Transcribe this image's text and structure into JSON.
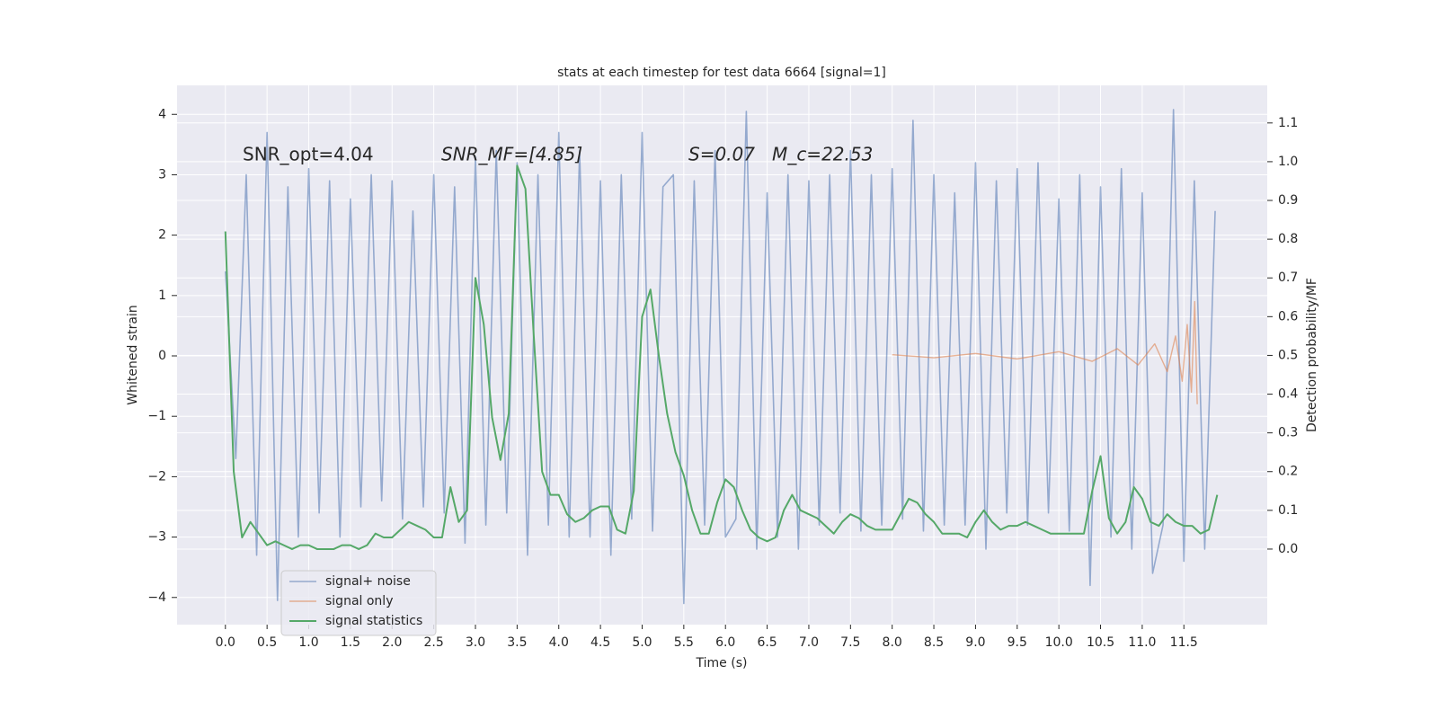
{
  "chart_data": {
    "type": "line",
    "title": "stats at each timestep for test data 6664 [signal=1]",
    "x_label": "Time (s)",
    "y_label": "Whitened strain",
    "y2_label": "Detection probability/MF",
    "annotations": [
      "SNR_opt=4.04",
      "SNR_MF=[4.85]",
      "S=0.07   M_c=22.53"
    ],
    "xlim": [
      -0.58,
      12.5
    ],
    "ylim": [
      -4.45,
      4.48
    ],
    "y2lim": [
      -0.195,
      1.197
    ],
    "xticks": [
      {
        "value": 0,
        "label": "0.0"
      },
      0.5,
      {
        "value": 1,
        "label": "1.0"
      },
      1.5,
      {
        "value": 2,
        "label": "2.0"
      },
      2.5,
      {
        "value": 3,
        "label": "3.0"
      },
      3.5,
      {
        "value": 4,
        "label": "4.0"
      },
      4.5,
      {
        "value": 5,
        "label": "5.0"
      },
      5.5,
      {
        "value": 6,
        "label": "6.0"
      },
      6.5,
      {
        "value": 7,
        "label": "7.0"
      },
      7.5,
      {
        "value": 8,
        "label": "8.0"
      },
      8.5,
      {
        "value": 9,
        "label": "9.0"
      },
      9.5,
      {
        "value": 10,
        "label": "10.0"
      },
      10.5,
      {
        "value": 11,
        "label": "11.0"
      },
      11.5
    ],
    "yticks": [
      {
        "value": -4,
        "label": "−4"
      },
      {
        "value": -3,
        "label": "−3"
      },
      {
        "value": -2,
        "label": "−2"
      },
      {
        "value": -1,
        "label": "−1"
      },
      0,
      1,
      2,
      3,
      4
    ],
    "y2ticks": [
      {
        "value": 0,
        "label": "0.0"
      },
      0.1,
      0.2,
      0.3,
      0.4,
      0.5,
      0.6,
      0.7,
      0.8,
      0.9,
      {
        "value": 1,
        "label": "1.0"
      },
      1.1
    ],
    "grid": true,
    "legend": "lower left",
    "series": [
      {
        "name": "signal+ noise",
        "color": "#4c72b0",
        "x": [
          0,
          0.125,
          0.25,
          0.375,
          0.5,
          0.625,
          0.75,
          0.875,
          1,
          1.125,
          1.25,
          1.375,
          1.5,
          1.625,
          1.75,
          1.875,
          2,
          2.125,
          2.25,
          2.375,
          2.5,
          2.625,
          2.75,
          2.875,
          3,
          3.125,
          3.25,
          3.375,
          3.5,
          3.625,
          3.75,
          3.875,
          4,
          4.125,
          4.25,
          4.375,
          4.5,
          4.625,
          4.75,
          4.875,
          5,
          5.125,
          5.25,
          5.375,
          5.5,
          5.625,
          5.75,
          5.875,
          6,
          6.125,
          6.25,
          6.375,
          6.5,
          6.625,
          6.75,
          6.875,
          7,
          7.125,
          7.25,
          7.375,
          7.5,
          7.625,
          7.75,
          7.875,
          8,
          8.125,
          8.25,
          8.375,
          8.5,
          8.625,
          8.75,
          8.875,
          9,
          9.125,
          9.25,
          9.375,
          9.5,
          9.625,
          9.75,
          9.875,
          10,
          10.125,
          10.25,
          10.375,
          10.5,
          10.625,
          10.75,
          10.875,
          11,
          11.125,
          11.25,
          11.375,
          11.5,
          11.625,
          11.75,
          11.875
        ],
        "values": [
          1.4,
          -1.7,
          3.0,
          -3.3,
          3.7,
          -4.05,
          2.8,
          -3.0,
          3.1,
          -2.6,
          2.9,
          -3.0,
          2.6,
          -2.5,
          3.0,
          -2.4,
          2.9,
          -2.7,
          2.4,
          -2.5,
          3.0,
          -2.6,
          2.8,
          -3.1,
          3.3,
          -2.8,
          3.4,
          -2.6,
          3.2,
          -3.3,
          3.0,
          -2.8,
          3.7,
          -3.0,
          3.4,
          -3.0,
          2.9,
          -3.3,
          3.0,
          -2.7,
          3.7,
          -2.9,
          2.8,
          3.0,
          -4.1,
          2.9,
          -2.8,
          3.4,
          -3.0,
          -2.7,
          4.05,
          -3.2,
          2.7,
          -3.0,
          3.0,
          -3.2,
          2.9,
          -2.8,
          3.0,
          -2.6,
          3.4,
          -2.9,
          3.0,
          -2.8,
          3.1,
          -2.7,
          3.9,
          -2.9,
          3.0,
          -2.8,
          2.7,
          -2.8,
          3.2,
          -3.2,
          2.9,
          -2.6,
          3.1,
          -2.8,
          3.2,
          -2.6,
          2.6,
          -2.9,
          3.0,
          -3.8,
          2.8,
          -3.0,
          3.1,
          -3.2,
          2.7,
          -3.6,
          -2.8,
          4.08,
          -3.4,
          2.9,
          -3.2,
          2.4
        ]
      },
      {
        "name": "signal only",
        "color": "#dd8452",
        "x": [
          8.0,
          8.5,
          9.0,
          9.5,
          10.0,
          10.4,
          10.7,
          10.95,
          11.15,
          11.3,
          11.4,
          11.48,
          11.54,
          11.59,
          11.63,
          11.66
        ],
        "values": [
          0.02,
          -0.03,
          0.04,
          -0.05,
          0.07,
          -0.09,
          0.12,
          -0.15,
          0.2,
          -0.26,
          0.33,
          -0.42,
          0.52,
          -0.6,
          0.9,
          -0.8
        ]
      },
      {
        "name": "signal statistics",
        "color": "#55a868",
        "axis": "y2",
        "x": [
          0,
          0.1,
          0.2,
          0.3,
          0.4,
          0.5,
          0.6,
          0.7,
          0.8,
          0.9,
          1,
          1.1,
          1.2,
          1.3,
          1.4,
          1.5,
          1.6,
          1.7,
          1.8,
          1.9,
          2,
          2.1,
          2.2,
          2.3,
          2.4,
          2.5,
          2.6,
          2.7,
          2.8,
          2.9,
          3,
          3.1,
          3.2,
          3.3,
          3.4,
          3.5,
          3.6,
          3.7,
          3.8,
          3.9,
          4,
          4.1,
          4.2,
          4.3,
          4.4,
          4.5,
          4.6,
          4.7,
          4.8,
          4.9,
          5,
          5.1,
          5.2,
          5.3,
          5.4,
          5.5,
          5.6,
          5.7,
          5.8,
          5.9,
          6,
          6.1,
          6.2,
          6.3,
          6.4,
          6.5,
          6.6,
          6.7,
          6.8,
          6.9,
          7,
          7.1,
          7.2,
          7.3,
          7.4,
          7.5,
          7.6,
          7.7,
          7.8,
          7.9,
          8,
          8.1,
          8.2,
          8.3,
          8.4,
          8.5,
          8.6,
          8.7,
          8.8,
          8.9,
          9,
          9.1,
          9.2,
          9.3,
          9.4,
          9.5,
          9.6,
          9.7,
          9.8,
          9.9,
          10,
          10.1,
          10.2,
          10.3,
          10.4,
          10.5,
          10.6,
          10.7,
          10.8,
          10.9,
          11,
          11.1,
          11.2,
          11.3,
          11.4,
          11.5,
          11.6,
          11.7,
          11.8,
          11.9
        ],
        "values": [
          0.82,
          0.2,
          0.03,
          0.07,
          0.04,
          0.01,
          0.02,
          0.01,
          0.0,
          0.01,
          0.01,
          0.0,
          0.0,
          0.0,
          0.01,
          0.01,
          0.0,
          0.01,
          0.04,
          0.03,
          0.03,
          0.05,
          0.07,
          0.06,
          0.05,
          0.03,
          0.03,
          0.16,
          0.07,
          0.1,
          0.7,
          0.58,
          0.34,
          0.23,
          0.35,
          0.99,
          0.93,
          0.55,
          0.2,
          0.14,
          0.14,
          0.09,
          0.07,
          0.08,
          0.1,
          0.11,
          0.11,
          0.05,
          0.04,
          0.15,
          0.6,
          0.67,
          0.5,
          0.35,
          0.25,
          0.19,
          0.1,
          0.04,
          0.04,
          0.12,
          0.18,
          0.16,
          0.1,
          0.05,
          0.03,
          0.02,
          0.03,
          0.1,
          0.14,
          0.1,
          0.09,
          0.08,
          0.06,
          0.04,
          0.07,
          0.09,
          0.08,
          0.06,
          0.05,
          0.05,
          0.05,
          0.09,
          0.13,
          0.12,
          0.09,
          0.07,
          0.04,
          0.04,
          0.04,
          0.03,
          0.07,
          0.1,
          0.07,
          0.05,
          0.06,
          0.06,
          0.07,
          0.06,
          0.05,
          0.04,
          0.04,
          0.04,
          0.04,
          0.04,
          0.15,
          0.24,
          0.08,
          0.04,
          0.07,
          0.16,
          0.13,
          0.07,
          0.06,
          0.09,
          0.07,
          0.06,
          0.06,
          0.04,
          0.05,
          0.14
        ]
      }
    ]
  }
}
